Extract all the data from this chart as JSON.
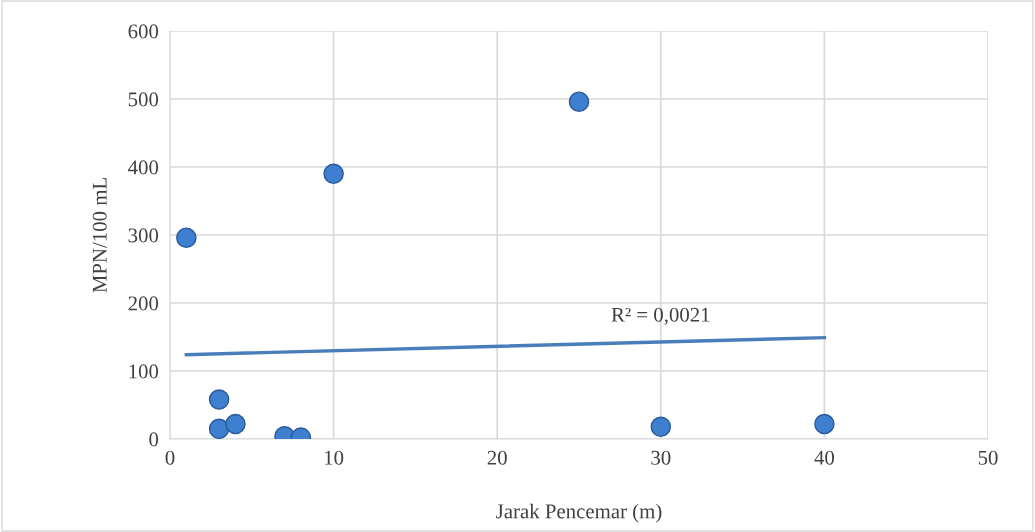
{
  "chart_data": {
    "type": "scatter",
    "xlabel": "Jarak Pencemar (m)",
    "ylabel": "MPN/100 mL",
    "series": [
      {
        "color": "#3f7fcf",
        "x": [
          1,
          3,
          3,
          4,
          7,
          8,
          10,
          25,
          30,
          40
        ],
        "values": [
          296,
          58,
          15,
          22,
          4,
          2,
          390,
          496,
          18,
          22
        ],
        "marker": "circle"
      },
      {
        "type": "line",
        "color": "#4a7ebb",
        "x": [
          1,
          40
        ],
        "values": [
          124,
          149
        ],
        "marker": "none"
      }
    ],
    "annotations": [
      "R² = 0,0021"
    ],
    "xlim": [
      0,
      50
    ],
    "xticks": [
      0,
      10,
      20,
      30,
      40,
      50
    ],
    "ylim": [
      0,
      600
    ],
    "yticks": [
      0,
      100,
      200,
      300,
      400,
      500,
      600
    ],
    "grid": true,
    "legend": false
  }
}
